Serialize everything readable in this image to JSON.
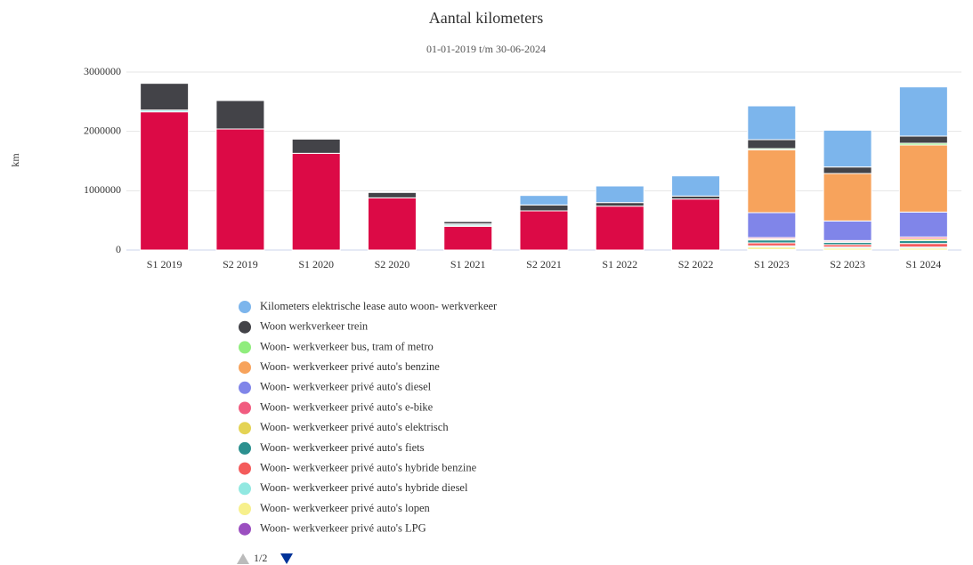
{
  "chart_data": {
    "type": "stacked_bar",
    "title": "Aantal kilometers",
    "subtitle": "01-01-2019 t/m 30-06-2024",
    "y_label": "km",
    "categories": [
      "S1 2019",
      "S2 2019",
      "S1 2020",
      "S2 2020",
      "S1 2021",
      "S2 2021",
      "S1 2022",
      "S2 2022",
      "S1 2023",
      "S2 2023",
      "S1 2024"
    ],
    "ylim": [
      0,
      3000000
    ],
    "yticks": [
      0,
      1000000,
      2000000,
      3000000
    ],
    "grid": true,
    "legend_page": "1/2",
    "series": [
      {
        "name": "Kilometers elektrische lease auto woon- werkverkeer",
        "color": "#7cb5ec",
        "values": [
          0,
          0,
          0,
          0,
          0,
          160000,
          280000,
          340000,
          570000,
          620000,
          830000
        ]
      },
      {
        "name": "Woon werkverkeer trein",
        "color": "#434348",
        "values": [
          450000,
          480000,
          240000,
          90000,
          40000,
          100000,
          60000,
          50000,
          150000,
          110000,
          120000
        ]
      },
      {
        "name": "Woon- werkverkeer bus, tram of metro",
        "color": "#90ed7d",
        "values": [
          0,
          0,
          0,
          0,
          0,
          0,
          0,
          0,
          20000,
          0,
          30000
        ]
      },
      {
        "name": "Woon- werkverkeer privé auto's benzine",
        "color": "#f7a35c",
        "values": [
          0,
          0,
          0,
          0,
          0,
          0,
          0,
          0,
          1060000,
          800000,
          1130000
        ]
      },
      {
        "name": "Woon- werkverkeer privé auto's diesel",
        "color": "#8085e9",
        "values": [
          0,
          0,
          0,
          0,
          0,
          0,
          0,
          0,
          420000,
          330000,
          420000
        ]
      },
      {
        "name": "Woon- werkverkeer privé auto's e-bike",
        "color": "#f15c80",
        "values": [
          0,
          0,
          0,
          0,
          0,
          0,
          0,
          0,
          20000,
          20000,
          30000
        ]
      },
      {
        "name": "Woon- werkverkeer privé auto's elektrisch",
        "color": "#e4d354",
        "values": [
          0,
          0,
          0,
          0,
          0,
          0,
          0,
          0,
          20000,
          10000,
          30000
        ]
      },
      {
        "name": "Woon- werkverkeer privé auto's fiets",
        "color": "#2b908f",
        "values": [
          0,
          0,
          0,
          0,
          20000,
          0,
          0,
          0,
          50000,
          40000,
          50000
        ]
      },
      {
        "name": "Woon- werkverkeer privé auto's hybride benzine",
        "color": "#f45b5b",
        "values": [
          0,
          0,
          0,
          0,
          0,
          0,
          0,
          0,
          50000,
          40000,
          60000
        ]
      },
      {
        "name": "Woon- werkverkeer privé auto's hybride diesel",
        "color": "#91e8e1",
        "values": [
          30000,
          0,
          0,
          0,
          20000,
          0,
          0,
          0,
          20000,
          20000,
          20000
        ]
      },
      {
        "name": "Woon- werkverkeer privé auto's lopen",
        "color": "#f7f08c",
        "values": [
          0,
          0,
          0,
          0,
          0,
          0,
          0,
          0,
          40000,
          30000,
          30000
        ]
      },
      {
        "name": "Woon- werkverkeer privé auto's LPG",
        "color": "#9b4fc0",
        "values": [
          0,
          0,
          0,
          0,
          0,
          0,
          0,
          0,
          10000,
          0,
          0
        ]
      },
      {
        "color": "#dc0a46",
        "values": [
          2330000,
          2040000,
          1630000,
          880000,
          400000,
          660000,
          740000,
          860000,
          0,
          0,
          0
        ]
      }
    ]
  }
}
